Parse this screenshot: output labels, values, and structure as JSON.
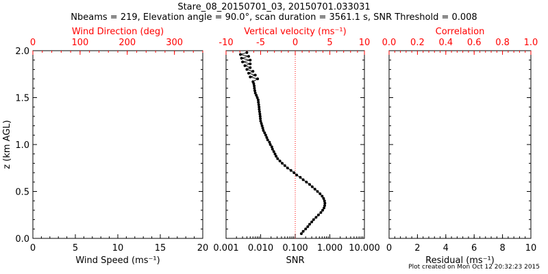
{
  "header": {
    "title": "Stare_08_20150701_03, 20150701.033031",
    "subtitle": "Nbeams = 219, Elevation angle = 90.0°, scan duration = 3561.1 s, SNR Threshold = 0.008"
  },
  "footer": {
    "credit": "Plot created on Mon Oct 12 20:32:23 2015"
  },
  "colors": {
    "axis": "#000000",
    "top_axis": "#ff0000",
    "zero_line": "#ff0000",
    "data": "#000000"
  },
  "chart_data": [
    {
      "type": "scatter",
      "panel": "wind",
      "ylabel": "z (km AGL)",
      "ylim": [
        0,
        2.0
      ],
      "yticks": [
        "0.0",
        "0.5",
        "1.0",
        "1.5",
        "2.0"
      ],
      "bottom_axis": {
        "label": "Wind Speed (ms⁻¹)",
        "ticks": [
          "0",
          "5",
          "10",
          "15",
          "20"
        ],
        "lim": [
          0,
          20
        ]
      },
      "top_axis": {
        "label": "Wind Direction (deg)",
        "ticks": [
          "0",
          "100",
          "200",
          "300"
        ],
        "lim": [
          0,
          360
        ]
      },
      "series": []
    },
    {
      "type": "line",
      "panel": "velocity",
      "ylim": [
        0,
        2.0
      ],
      "bottom_axis": {
        "label": "SNR",
        "ticks": [
          "0.001",
          "0.010",
          "0.100",
          "1.000",
          "10.000"
        ],
        "lim": [
          0.001,
          10
        ],
        "scale": "log"
      },
      "top_axis": {
        "label": "Vertical velocity (ms⁻¹)",
        "ticks": [
          "-10",
          "-5",
          "0",
          "5",
          "10"
        ],
        "lim": [
          -10,
          10
        ]
      },
      "zero_line": 0.1,
      "series": [
        {
          "x": [
            0.15,
            0.17,
            0.2,
            0.23,
            0.26,
            0.3,
            0.34,
            0.4,
            0.47,
            0.55,
            0.62,
            0.68,
            0.71,
            0.72,
            0.7,
            0.66,
            0.6,
            0.52,
            0.44,
            0.37,
            0.31,
            0.26,
            0.21,
            0.17,
            0.14,
            0.11,
            0.092,
            0.075,
            0.06,
            0.05,
            0.042,
            0.036,
            0.031,
            0.028,
            0.026,
            0.024,
            0.022,
            0.021,
            0.019,
            0.018,
            0.016,
            0.015,
            0.014,
            0.013,
            0.012,
            0.0115,
            0.011,
            0.0105,
            0.01,
            0.0098,
            0.0097,
            0.0095,
            0.0093,
            0.0091,
            0.009,
            0.0088,
            0.0086,
            0.0085,
            0.008,
            0.0075,
            0.007,
            0.0068,
            0.0066,
            0.0065,
            0.0063,
            0.006,
            0.0082,
            0.005,
            0.007,
            0.0045,
            0.006,
            0.004,
            0.005,
            0.0035,
            0.005,
            0.003,
            0.005,
            0.0028,
            0.0045,
            0.0026,
            0.004
          ],
          "y": [
            0.05,
            0.075,
            0.1,
            0.125,
            0.15,
            0.175,
            0.2,
            0.225,
            0.25,
            0.275,
            0.3,
            0.325,
            0.35,
            0.375,
            0.4,
            0.425,
            0.45,
            0.475,
            0.5,
            0.525,
            0.55,
            0.575,
            0.6,
            0.625,
            0.65,
            0.675,
            0.7,
            0.725,
            0.75,
            0.775,
            0.8,
            0.825,
            0.85,
            0.875,
            0.9,
            0.925,
            0.95,
            0.975,
            1.0,
            1.025,
            1.05,
            1.075,
            1.1,
            1.125,
            1.15,
            1.175,
            1.2,
            1.225,
            1.25,
            1.275,
            1.3,
            1.325,
            1.35,
            1.375,
            1.4,
            1.425,
            1.45,
            1.475,
            1.5,
            1.525,
            1.55,
            1.575,
            1.6,
            1.625,
            1.65,
            1.67,
            1.7,
            1.72,
            1.74,
            1.76,
            1.78,
            1.8,
            1.82,
            1.84,
            1.86,
            1.88,
            1.9,
            1.92,
            1.94,
            1.96,
            1.98
          ]
        }
      ]
    },
    {
      "type": "scatter",
      "panel": "correlation",
      "ylim": [
        0,
        2.0
      ],
      "bottom_axis": {
        "label": "Residual (ms⁻¹)",
        "ticks": [
          "0",
          "2",
          "4",
          "6",
          "8",
          "10"
        ],
        "lim": [
          0,
          10
        ]
      },
      "top_axis": {
        "label": "Correlation",
        "ticks": [
          "0.0",
          "0.2",
          "0.4",
          "0.6",
          "0.8",
          "1.0"
        ],
        "lim": [
          0,
          1
        ]
      },
      "series": []
    }
  ]
}
